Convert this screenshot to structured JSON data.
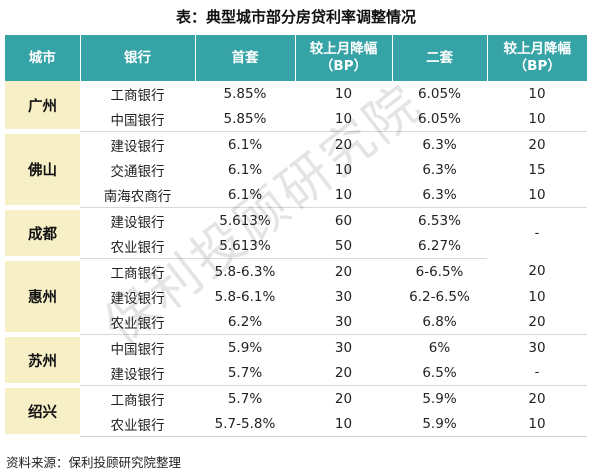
{
  "title": "表：典型城市部分房贷利率调整情况",
  "headers": {
    "city": "城市",
    "bank": "银行",
    "first": "首套",
    "first_change": "较上月降幅\n（BP）",
    "second": "二套",
    "second_change": "较上月降幅\n（BP）"
  },
  "cities": [
    {
      "name": "广州",
      "rows": [
        {
          "bank": "工商银行",
          "first": "5.85%",
          "first_change": "10",
          "second": "6.05%",
          "second_change": "10"
        },
        {
          "bank": "中国银行",
          "first": "5.85%",
          "first_change": "10",
          "second": "6.05%",
          "second_change": "10"
        }
      ]
    },
    {
      "name": "佛山",
      "rows": [
        {
          "bank": "建设银行",
          "first": "6.1%",
          "first_change": "20",
          "second": "6.3%",
          "second_change": "20"
        },
        {
          "bank": "交通银行",
          "first": "6.1%",
          "first_change": "10",
          "second": "6.3%",
          "second_change": "15"
        },
        {
          "bank": "南海农商行",
          "first": "6.1%",
          "first_change": "10",
          "second": "6.3%",
          "second_change": "10"
        }
      ]
    },
    {
      "name": "成都",
      "rows": [
        {
          "bank": "建设银行",
          "first": "5.613%",
          "first_change": "60",
          "second": "6.53%",
          "second_change": "-"
        },
        {
          "bank": "农业银行",
          "first": "5.613%",
          "first_change": "50",
          "second": "6.27%",
          "second_change": ""
        }
      ]
    },
    {
      "name": "惠州",
      "rows": [
        {
          "bank": "工商银行",
          "first": "5.8-6.3%",
          "first_change": "20",
          "second": "6-6.5%",
          "second_change": "20"
        },
        {
          "bank": "建设银行",
          "first": "5.8-6.1%",
          "first_change": "30",
          "second": "6.2-6.5%",
          "second_change": "10"
        },
        {
          "bank": "农业银行",
          "first": "6.2%",
          "first_change": "30",
          "second": "6.8%",
          "second_change": "20"
        }
      ]
    },
    {
      "name": "苏州",
      "rows": [
        {
          "bank": "中国银行",
          "first": "5.9%",
          "first_change": "30",
          "second": "6%",
          "second_change": "30"
        },
        {
          "bank": "建设银行",
          "first": "5.7%",
          "first_change": "20",
          "second": "6.5%",
          "second_change": "-"
        }
      ]
    },
    {
      "name": "绍兴",
      "rows": [
        {
          "bank": "工商银行",
          "first": "5.7%",
          "first_change": "20",
          "second": "5.9%",
          "second_change": "20"
        },
        {
          "bank": "农业银行",
          "first": "5.7-5.8%",
          "first_change": "10",
          "second": "5.9%",
          "second_change": "10"
        }
      ]
    }
  ],
  "watermark": "保利投顾研究院",
  "source": "资料来源：保利投顾研究院整理",
  "colors": {
    "header_bg": "#36a4a7",
    "city_bg": "#f7efc6"
  }
}
